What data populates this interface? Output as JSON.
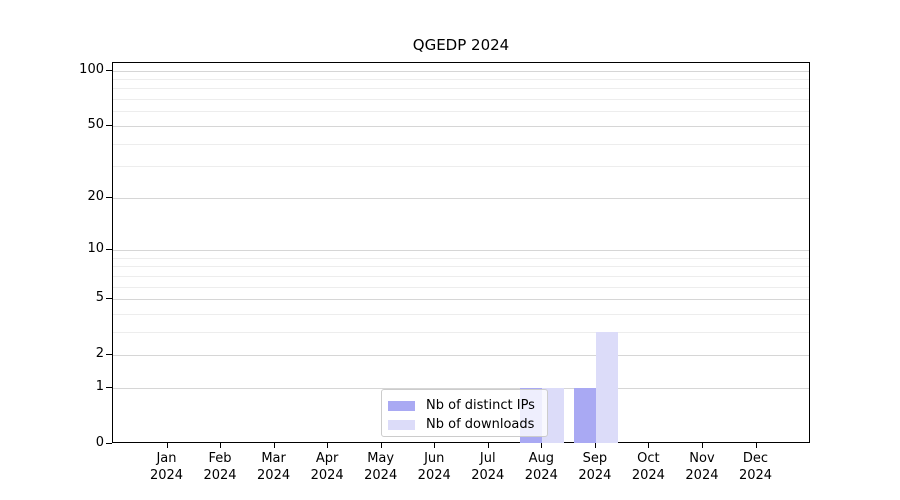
{
  "title": "QGEDP 2024",
  "chart_data": {
    "type": "bar",
    "title": "QGEDP 2024",
    "categories": [
      "Jan",
      "Feb",
      "Mar",
      "Apr",
      "May",
      "Jun",
      "Jul",
      "Aug",
      "Sep",
      "Oct",
      "Nov",
      "Dec"
    ],
    "year_label": "2024",
    "series": [
      {
        "name": "Nb of distinct IPs",
        "color": "#a9a9f3",
        "values": [
          0,
          0,
          0,
          0,
          0,
          0,
          0,
          1,
          1,
          0,
          0,
          0
        ]
      },
      {
        "name": "Nb of downloads",
        "color": "#dcdcf9",
        "values": [
          0,
          0,
          0,
          0,
          0,
          0,
          0,
          1,
          3,
          0,
          0,
          0
        ]
      }
    ],
    "xlabel": "",
    "ylabel": "",
    "yscale": "log1p",
    "ylim": [
      0,
      110
    ],
    "y_major_ticks": [
      0,
      1,
      2,
      5,
      10,
      20,
      50,
      100
    ],
    "y_minor_gridlines": [
      3,
      4,
      6,
      7,
      8,
      9,
      30,
      40,
      60,
      70,
      80,
      90
    ],
    "grid": "horizontal",
    "legend_position": "inside-bottom-center"
  }
}
